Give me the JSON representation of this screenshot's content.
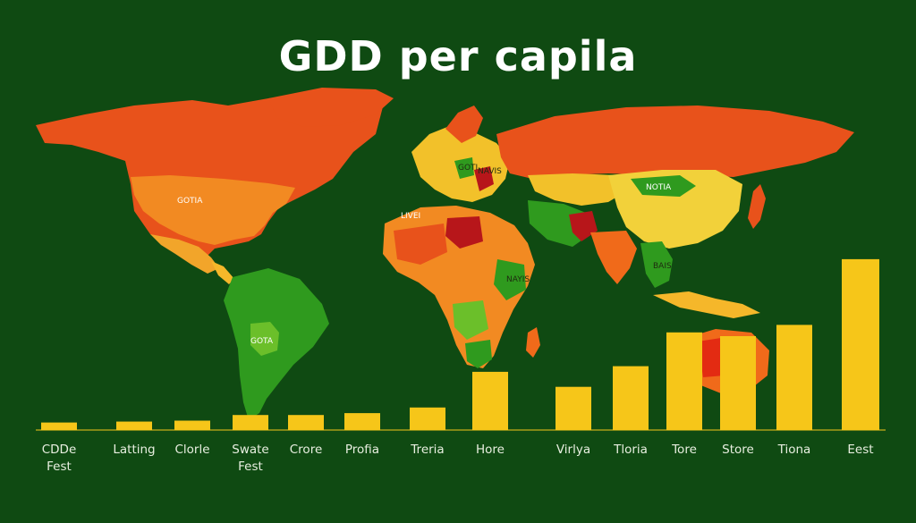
{
  "title": "GDD per capila",
  "colors": {
    "background": "#0f4a12",
    "bar": "#f6c619",
    "map_orange": "#f06a1a",
    "map_red_orange": "#e8521b",
    "map_yellow": "#f2c12a",
    "map_green": "#2f9a1e",
    "map_dark_red": "#b7161a"
  },
  "map_labels": [
    "GOTIA",
    "NOTIA",
    "NAYIS",
    "GOTA",
    "BAIS",
    "LIVEI",
    "GOTI",
    "NAVIS"
  ],
  "chart_data": {
    "type": "bar",
    "title": "GDD per capila",
    "categories": [
      [
        "CDDe",
        "Fest"
      ],
      [
        "Latting"
      ],
      [
        "Clorle"
      ],
      [
        "Swate",
        "Fest"
      ],
      [
        "Crore"
      ],
      [
        "Profia"
      ],
      [
        "Treria"
      ],
      [
        "Hore"
      ],
      [
        "Virlya"
      ],
      [
        "Tloria"
      ],
      [
        "Tore"
      ],
      [
        "Store"
      ],
      [
        "Tiona"
      ],
      [
        "Eest"
      ]
    ],
    "values": [
      4,
      4.5,
      5,
      8,
      8,
      9,
      12,
      31,
      23,
      34,
      52,
      50,
      56,
      91
    ],
    "ylim": [
      0,
      100
    ],
    "grid": false,
    "legend": "none"
  }
}
